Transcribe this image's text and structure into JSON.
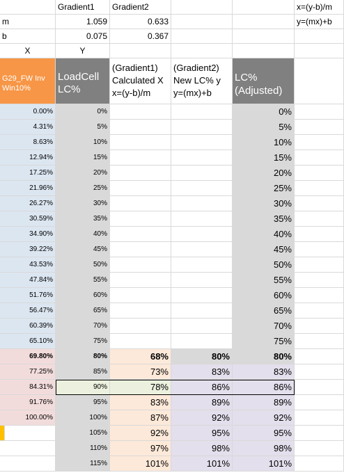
{
  "top": {
    "row0": {
      "b": "Gradient1",
      "c": "Gradient2",
      "f": "x=(y-b)/m"
    },
    "row1": {
      "a": "m",
      "b": "1.059",
      "c": "0.633",
      "f": "y=(mx)+b"
    },
    "row2": {
      "a": "b",
      "b": "0.075",
      "c": "0.367"
    },
    "row3": {
      "a": "X",
      "b": "Y"
    }
  },
  "headers": {
    "a": "G29_FW Inv Win10%",
    "b": "LoadCell LC%",
    "c": "(Gradient1) Calculated X x=(y-b)/m",
    "d": "(Gradient2) New LC% y y=(mx)+b",
    "e": "LC% (Adjusted)"
  },
  "rows": [
    {
      "a": "0.00%",
      "b": "0%",
      "c": "",
      "d": "",
      "e": "0%"
    },
    {
      "a": "4.31%",
      "b": "5%",
      "c": "",
      "d": "",
      "e": "5%"
    },
    {
      "a": "8.63%",
      "b": "10%",
      "c": "",
      "d": "",
      "e": "10%"
    },
    {
      "a": "12.94%",
      "b": "15%",
      "c": "",
      "d": "",
      "e": "15%"
    },
    {
      "a": "17.25%",
      "b": "20%",
      "c": "",
      "d": "",
      "e": "20%"
    },
    {
      "a": "21.96%",
      "b": "25%",
      "c": "",
      "d": "",
      "e": "25%"
    },
    {
      "a": "26.27%",
      "b": "30%",
      "c": "",
      "d": "",
      "e": "30%"
    },
    {
      "a": "30.59%",
      "b": "35%",
      "c": "",
      "d": "",
      "e": "35%"
    },
    {
      "a": "34.90%",
      "b": "40%",
      "c": "",
      "d": "",
      "e": "40%"
    },
    {
      "a": "39.22%",
      "b": "45%",
      "c": "",
      "d": "",
      "e": "45%"
    },
    {
      "a": "43.53%",
      "b": "50%",
      "c": "",
      "d": "",
      "e": "50%"
    },
    {
      "a": "47.84%",
      "b": "55%",
      "c": "",
      "d": "",
      "e": "55%"
    },
    {
      "a": "51.76%",
      "b": "60%",
      "c": "",
      "d": "",
      "e": "60%"
    },
    {
      "a": "56.47%",
      "b": "65%",
      "c": "",
      "d": "",
      "e": "65%"
    },
    {
      "a": "60.39%",
      "b": "70%",
      "c": "",
      "d": "",
      "e": "70%"
    },
    {
      "a": "65.10%",
      "b": "75%",
      "c": "",
      "d": "",
      "e": "75%"
    },
    {
      "a": "69.80%",
      "b": "80%",
      "c": "68%",
      "d": "80%",
      "e": "80%",
      "bold": true
    },
    {
      "a": "77.25%",
      "b": "85%",
      "c": "73%",
      "d": "83%",
      "e": "83%"
    },
    {
      "a": "84.31%",
      "b": "90%",
      "c": "78%",
      "d": "86%",
      "e": "86%",
      "selected": true
    },
    {
      "a": "91.76%",
      "b": "95%",
      "c": "83%",
      "d": "89%",
      "e": "89%"
    },
    {
      "a": "100.00%",
      "b": "100%",
      "c": "87%",
      "d": "92%",
      "e": "92%"
    },
    {
      "a": "",
      "b": "105%",
      "c": "92%",
      "d": "95%",
      "e": "95%"
    },
    {
      "a": "",
      "b": "110%",
      "c": "97%",
      "d": "98%",
      "e": "98%"
    },
    {
      "a": "",
      "b": "115%",
      "c": "101%",
      "d": "101%",
      "e": "101%"
    }
  ],
  "colors": {
    "blue": "#dce6f1",
    "pink": "#f2dcdb",
    "gray": "#d9d9d9",
    "peach": "#fde9d9",
    "lavender": "#e4dfec",
    "green": "#ebf1de",
    "yellow": "#ffc000",
    "header_orange": "#f79646",
    "header_gray": "#808080"
  }
}
